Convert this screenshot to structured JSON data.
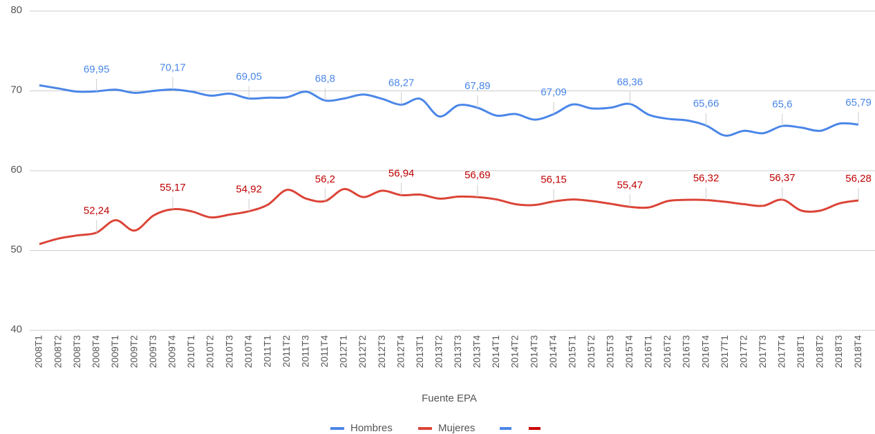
{
  "chart_data": {
    "type": "line",
    "xlabel": "Fuente EPA",
    "categories": [
      "2008T1",
      "2008T2",
      "2008T3",
      "2008T4",
      "2009T1",
      "2009T2",
      "2009T3",
      "2009T4",
      "2010T1",
      "2010T2",
      "2010T3",
      "2010T4",
      "2011T1",
      "2011T2",
      "2011T3",
      "2011T4",
      "2012T1",
      "2012T2",
      "2012T3",
      "2012T4",
      "2013T1",
      "2013T2",
      "2013T3",
      "2013T4",
      "2014T1",
      "2014T2",
      "2014T3",
      "2014T4",
      "2015T1",
      "2015T2",
      "2015T3",
      "2015T4",
      "2016T1",
      "2016T2",
      "2016T3",
      "2016T4",
      "2017T1",
      "2017T2",
      "2017T3",
      "2017T4",
      "2018T1",
      "2018T2",
      "2018T3",
      "2018T4"
    ],
    "series": [
      {
        "name": "Hombres",
        "color": "#4a86e8",
        "label_color": "#4a86e8",
        "values": [
          70.7,
          70.3,
          69.9,
          69.95,
          70.15,
          69.75,
          70.0,
          70.17,
          69.9,
          69.4,
          69.65,
          69.05,
          69.15,
          69.2,
          69.9,
          68.8,
          69.05,
          69.55,
          69.0,
          68.27,
          69.0,
          66.8,
          68.2,
          67.89,
          66.9,
          67.1,
          66.4,
          67.09,
          68.3,
          67.8,
          67.9,
          68.36,
          67.0,
          66.5,
          66.3,
          65.66,
          64.4,
          65.0,
          64.7,
          65.6,
          65.4,
          65.0,
          65.9,
          65.79
        ],
        "value_labels": [
          null,
          null,
          null,
          "69,95",
          null,
          null,
          null,
          "70,17",
          null,
          null,
          null,
          "69,05",
          null,
          null,
          null,
          "68,8",
          null,
          null,
          null,
          "68,27",
          null,
          null,
          null,
          "67,89",
          null,
          null,
          null,
          "67,09",
          null,
          null,
          null,
          "68,36",
          null,
          null,
          null,
          "65,66",
          null,
          null,
          null,
          "65,6",
          null,
          null,
          null,
          "65,79"
        ]
      },
      {
        "name": "Mujeres",
        "color": "#db4437",
        "label_color": "#c00000",
        "values": [
          50.8,
          51.5,
          51.9,
          52.24,
          53.8,
          52.5,
          54.4,
          55.17,
          54.9,
          54.15,
          54.5,
          54.92,
          55.75,
          57.6,
          56.5,
          56.2,
          57.7,
          56.7,
          57.5,
          56.94,
          57.0,
          56.5,
          56.75,
          56.69,
          56.4,
          55.8,
          55.7,
          56.15,
          56.4,
          56.2,
          55.85,
          55.47,
          55.4,
          56.2,
          56.35,
          56.32,
          56.1,
          55.8,
          55.6,
          56.37,
          55.0,
          55.0,
          55.9,
          56.28
        ],
        "value_labels": [
          null,
          null,
          null,
          "52,24",
          null,
          null,
          null,
          "55,17",
          null,
          null,
          null,
          "54,92",
          null,
          null,
          null,
          "56,2",
          null,
          null,
          null,
          "56,94",
          null,
          null,
          null,
          "56,69",
          null,
          null,
          null,
          "56,15",
          null,
          null,
          null,
          "55,47",
          null,
          null,
          null,
          "56,32",
          null,
          null,
          null,
          "56,37",
          null,
          null,
          null,
          "56,28"
        ]
      }
    ],
    "ylim": [
      40,
      80
    ],
    "yticks": [
      40,
      50,
      60,
      70,
      80
    ],
    "grid": true,
    "legend": "bottom"
  }
}
